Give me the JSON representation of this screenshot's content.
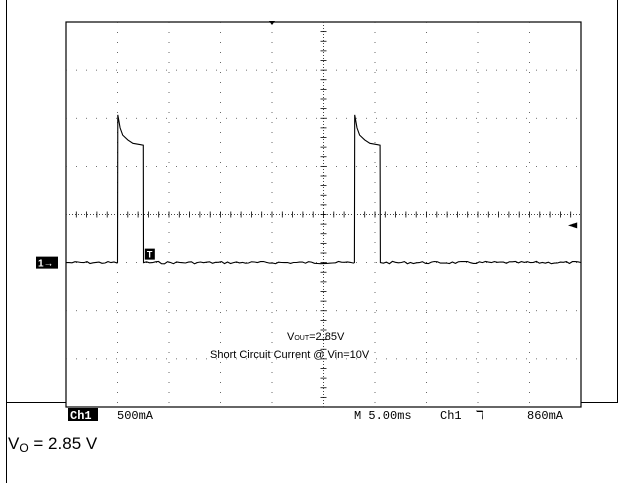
{
  "chart_data": {
    "type": "line",
    "title": "",
    "subtitle": "",
    "xlabel": "",
    "ylabel": "",
    "grid": true,
    "x_divisions": 10,
    "y_divisions": 8,
    "xlim": [
      0,
      10
    ],
    "ylim": [
      -4,
      4
    ],
    "ground_level_div": -1.0,
    "trigger_level_div": 0.0,
    "trigger_position_div": 4.0,
    "series": [
      {
        "x": [
          0.0,
          1.0,
          1.005,
          1.05,
          1.1,
          1.2,
          1.3,
          1.45,
          1.5,
          1.505,
          5.6,
          5.605,
          5.65,
          5.7,
          5.8,
          5.9,
          6.05,
          6.1,
          6.105,
          10.4
        ],
        "y": [
          -1.0,
          -1.0,
          2.07,
          1.8,
          1.65,
          1.55,
          1.48,
          1.45,
          1.44,
          -1.0,
          -1.0,
          2.07,
          1.8,
          1.65,
          1.55,
          1.48,
          1.45,
          1.44,
          -1.0,
          -1.0
        ]
      }
    ],
    "annotations": {
      "vout": "V",
      "vout_sub": "OUT",
      "vout_value": "=2.85V",
      "description": "Short Circuit Current @ Vin=10V"
    },
    "markers": {
      "ground": "1→",
      "trigger": "T",
      "trigger_arrow": "◄"
    },
    "readout": {
      "channel": "Ch1",
      "scale": "500mA",
      "timebase": "M 5.00ms",
      "trigger_channel": "Ch1",
      "trigger_slope": "ℸ",
      "trigger_level": "860mA"
    },
    "caption": {
      "prefix": "V",
      "sub": "O",
      "suffix": " = 2.85 V"
    }
  }
}
